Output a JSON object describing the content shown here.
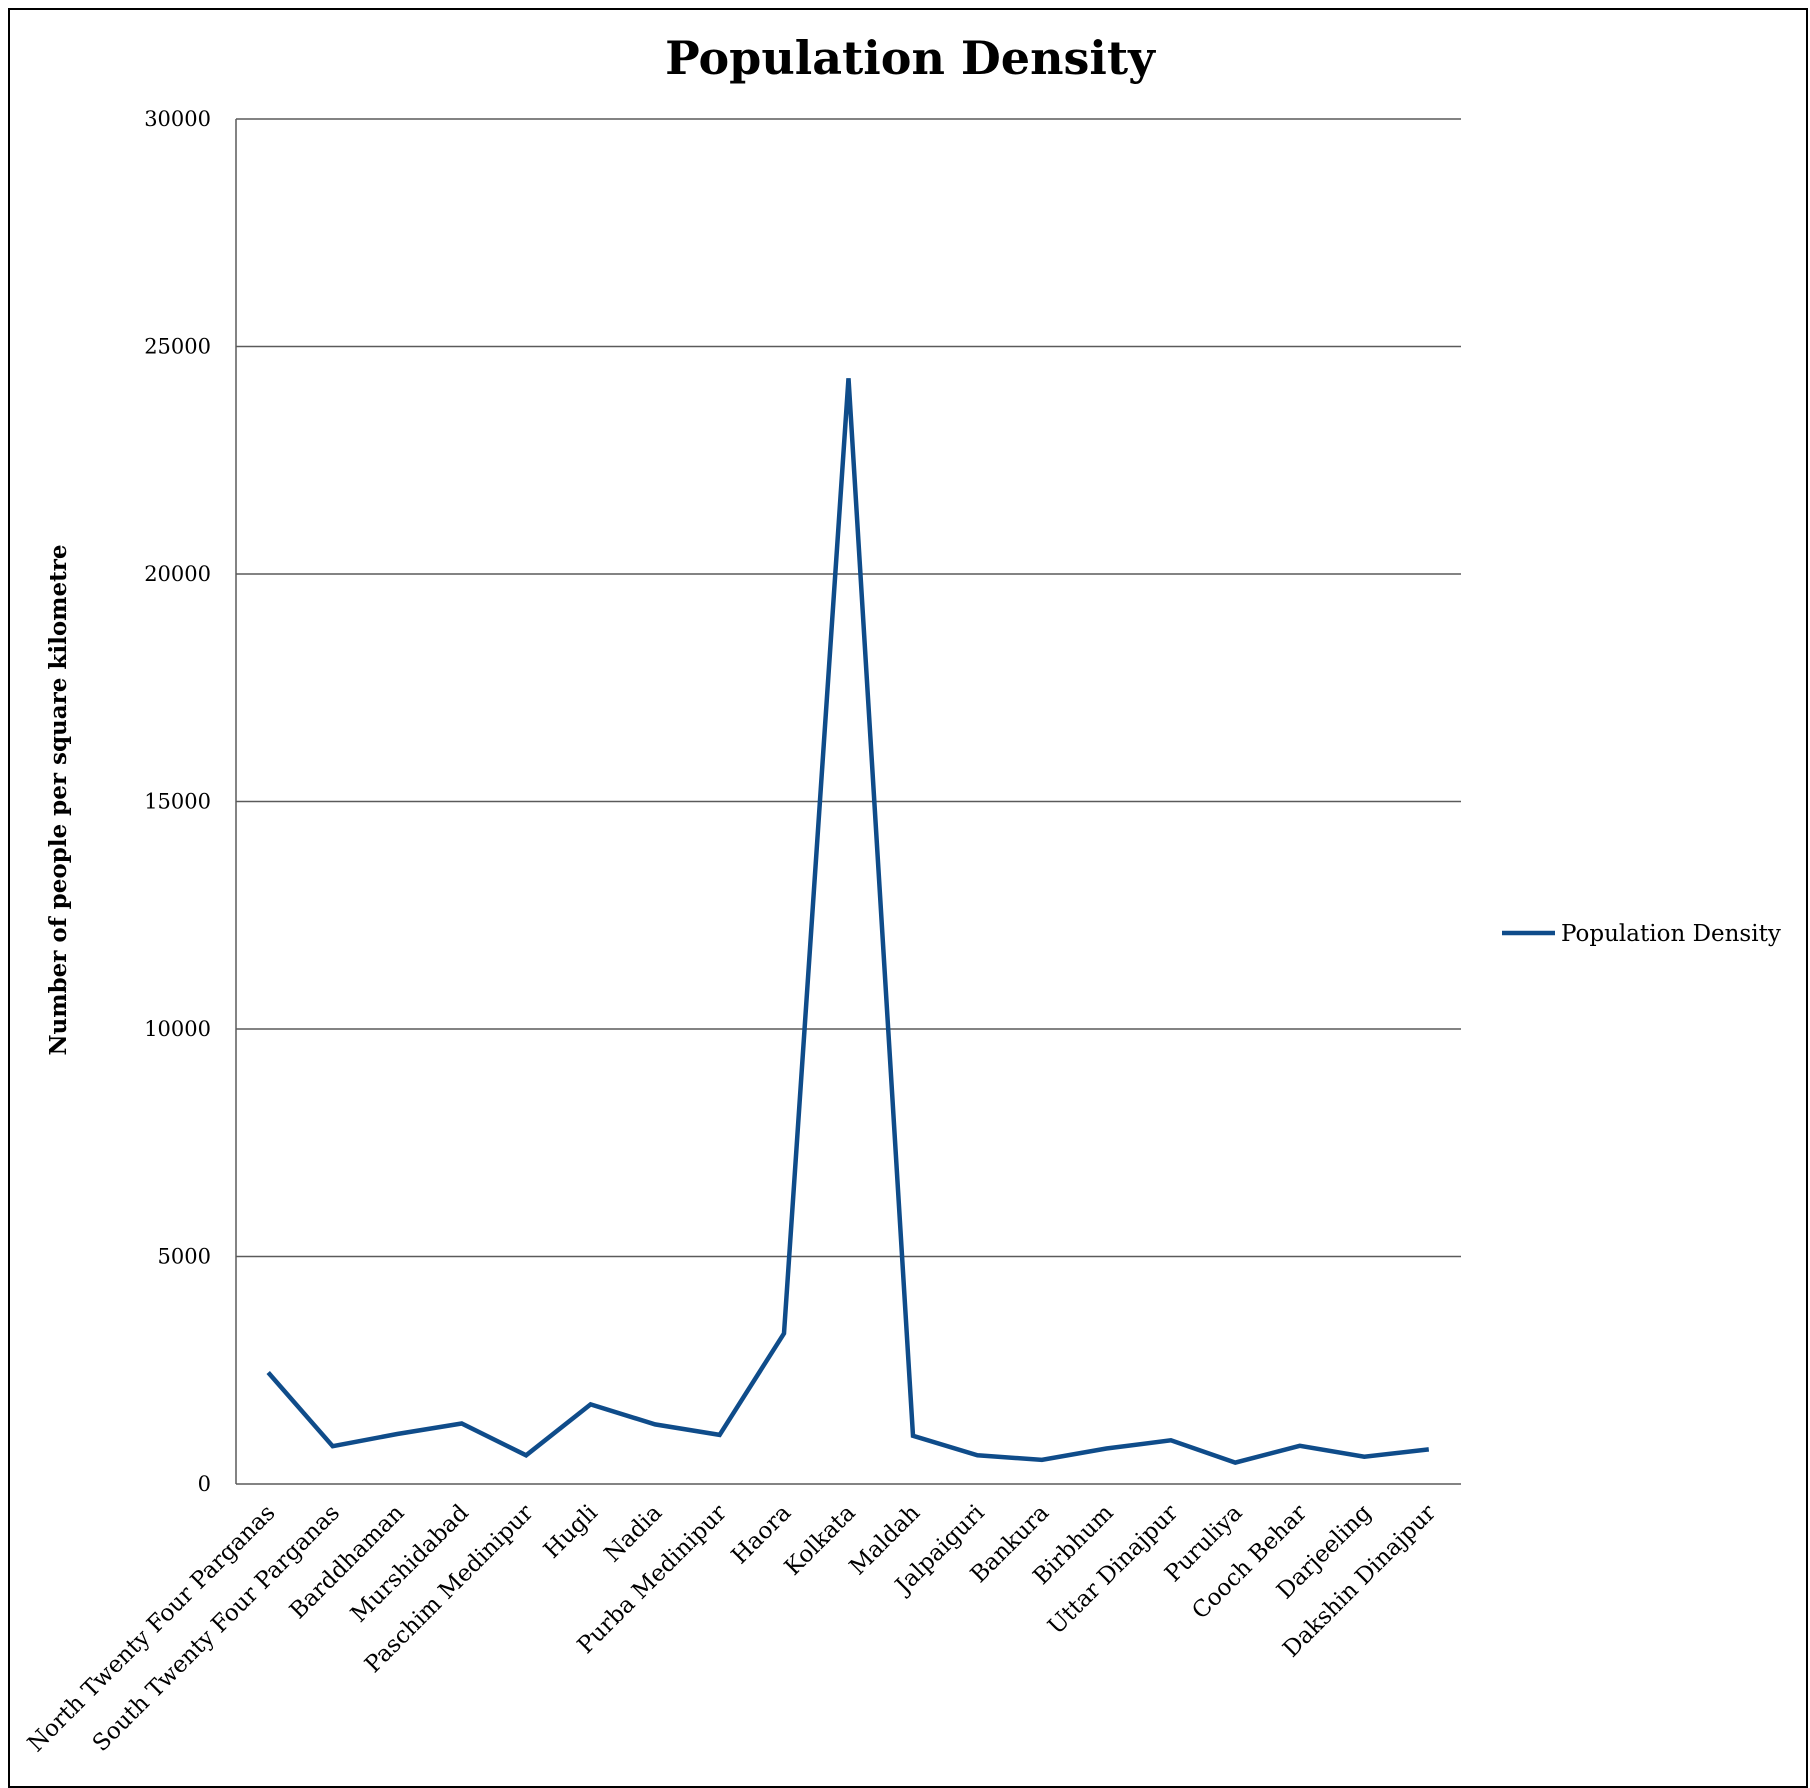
{
  "chart_data": {
    "type": "line",
    "title": "Population Density",
    "xlabel": "",
    "ylabel": "Number of people per square kilometre",
    "ylim": [
      0,
      30000
    ],
    "yticks": [
      "0",
      "5000",
      "10000",
      "15000",
      "20000",
      "25000",
      "30000"
    ],
    "grid": true,
    "legend_position": "right",
    "categories": [
      "North Twenty Four Parganas",
      "South Twenty Four Parganas",
      "Barddhaman",
      "Murshidabad",
      "Paschim Medinipur",
      "Hugli",
      "Nadia",
      "Purba Medinipur",
      "Haora",
      "Kolkata",
      "Maldah",
      "Jalpaiguri",
      "Bankura",
      "Birbhum",
      "Uttar Dinajpur",
      "Puruliya",
      "Cooch Behar",
      "Darjeeling",
      "Dakshin Dinajpur"
    ],
    "series": [
      {
        "name": "Population Density",
        "color": "#0f4c8a",
        "values": [
          2450,
          830,
          1100,
          1330,
          630,
          1750,
          1310,
          1080,
          3310,
          24300,
          1060,
          630,
          530,
          780,
          960,
          470,
          840,
          600,
          760
        ]
      }
    ]
  }
}
